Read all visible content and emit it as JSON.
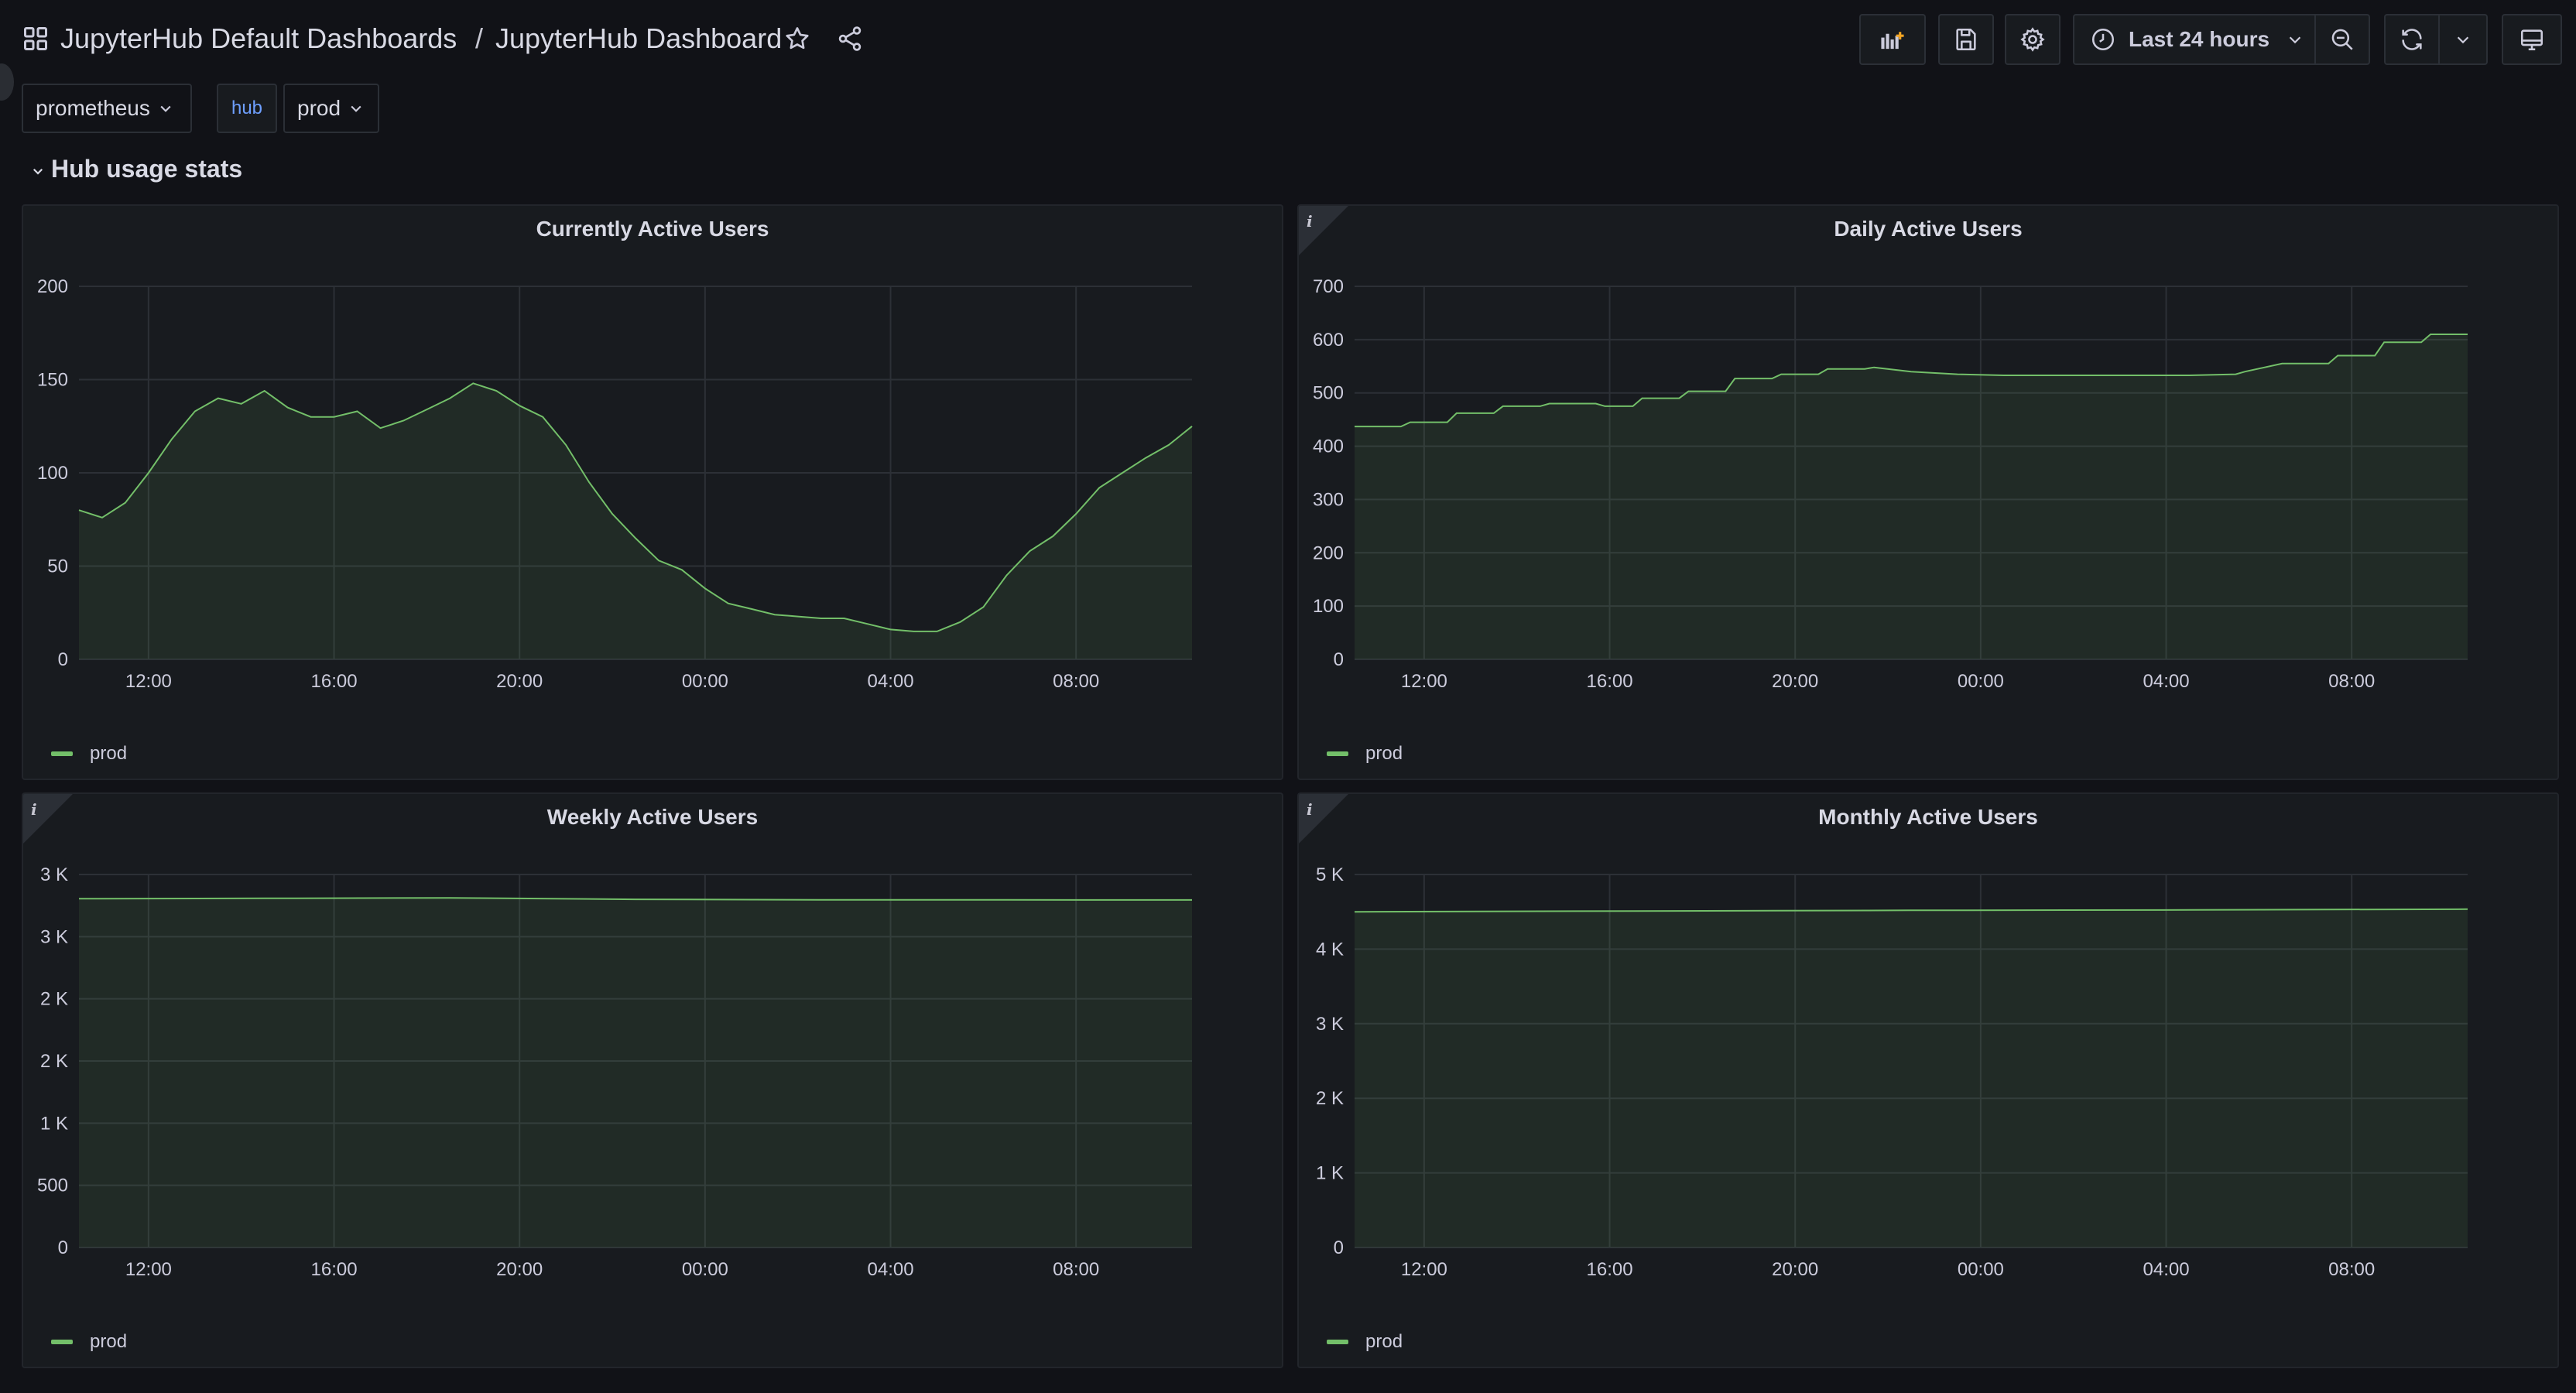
{
  "breadcrumb": {
    "folder": "JupyterHub Default Dashboards",
    "separator": "/",
    "title": "JupyterHub Dashboard"
  },
  "toolbar": {
    "time_range": "Last 24 hours"
  },
  "icons": {
    "apps": "grid-icon",
    "star": "star-icon",
    "share": "share-icon",
    "add_panel": "add-panel-icon",
    "save": "save-icon",
    "settings": "gear-icon",
    "clock": "clock-icon",
    "zoom_out": "zoom-out-icon",
    "refresh": "refresh-icon",
    "tv": "monitor-icon",
    "info": "info-icon"
  },
  "variables": {
    "datasource": "prometheus",
    "hub_label": "hub",
    "hub_value": "prod"
  },
  "row": {
    "title": "Hub usage stats"
  },
  "colors": {
    "series": "#73bf69",
    "background": "#111217",
    "panel": "#181b1f",
    "label_accent": "#6e9fff"
  },
  "panels": [
    {
      "title": "Currently Active Users",
      "legend": "prod",
      "has_info": false
    },
    {
      "title": "Daily Active Users",
      "legend": "prod",
      "has_info": true
    },
    {
      "title": "Weekly Active Users",
      "legend": "prod",
      "has_info": true
    },
    {
      "title": "Monthly Active Users",
      "legend": "prod",
      "has_info": true
    }
  ],
  "chart_data": [
    {
      "type": "area",
      "title": "Currently Active Users",
      "x_ticks": [
        "12:00",
        "16:00",
        "20:00",
        "00:00",
        "04:00",
        "08:00"
      ],
      "y_ticks": [
        "0",
        "50",
        "100",
        "150",
        "200"
      ],
      "ylim": [
        0,
        200
      ],
      "x_hours": [
        0,
        24
      ],
      "grid": true,
      "legend_position": "bottom-left",
      "series": [
        {
          "name": "prod",
          "x": [
            0,
            0.5,
            1.0,
            1.5,
            2.0,
            2.5,
            3.0,
            3.5,
            4.0,
            4.5,
            5.0,
            5.5,
            6.0,
            6.5,
            7.0,
            7.5,
            8.0,
            8.5,
            9.0,
            9.5,
            10.0,
            10.5,
            11.0,
            11.5,
            12.0,
            12.5,
            13.0,
            13.5,
            14.0,
            14.5,
            15.0,
            15.5,
            16.0,
            16.5,
            17.0,
            17.5,
            18.0,
            18.5,
            19.0,
            19.5,
            20.0,
            20.5,
            21.0,
            21.5,
            22.0,
            22.5,
            23.0,
            23.5,
            24.0
          ],
          "values": [
            80,
            76,
            84,
            100,
            118,
            133,
            140,
            137,
            144,
            135,
            130,
            130,
            133,
            124,
            128,
            134,
            140,
            148,
            144,
            136,
            130,
            115,
            95,
            78,
            65,
            53,
            48,
            38,
            30,
            27,
            24,
            23,
            22,
            22,
            19,
            16,
            15,
            15,
            20,
            28,
            45,
            58,
            66,
            78,
            92,
            100,
            108,
            115,
            125
          ]
        }
      ]
    },
    {
      "type": "area",
      "title": "Daily Active Users",
      "x_ticks": [
        "12:00",
        "16:00",
        "20:00",
        "00:00",
        "04:00",
        "08:00"
      ],
      "y_ticks": [
        "0",
        "100",
        "200",
        "300",
        "400",
        "500",
        "600",
        "700"
      ],
      "ylim": [
        0,
        700
      ],
      "x_hours": [
        0,
        24
      ],
      "grid": true,
      "legend_position": "bottom-left",
      "series": [
        {
          "name": "prod",
          "x": [
            0,
            1,
            1.2,
            2,
            2.2,
            3,
            3.2,
            4,
            4.2,
            5.2,
            5.4,
            6,
            6.2,
            7,
            7.2,
            8,
            8.2,
            9,
            9.2,
            10,
            10.2,
            11,
            11.2,
            12,
            13,
            14,
            15,
            16,
            17,
            18,
            19,
            19.2,
            20,
            21,
            21.2,
            22,
            22.2,
            23,
            23.2,
            24
          ],
          "values": [
            437,
            437,
            445,
            445,
            462,
            462,
            475,
            475,
            480,
            480,
            475,
            475,
            490,
            490,
            503,
            503,
            527,
            527,
            535,
            535,
            545,
            545,
            548,
            540,
            535,
            533,
            533,
            533,
            533,
            533,
            535,
            540,
            555,
            555,
            570,
            570,
            595,
            595,
            610,
            610
          ]
        }
      ]
    },
    {
      "type": "area",
      "title": "Weekly Active Users",
      "x_ticks": [
        "12:00",
        "16:00",
        "20:00",
        "00:00",
        "04:00",
        "08:00"
      ],
      "y_ticks": [
        "0",
        "500",
        "1 K",
        "2 K",
        "2 K",
        "3 K",
        "3 K"
      ],
      "ylim": [
        0,
        3000
      ],
      "x_hours": [
        0,
        24
      ],
      "grid": true,
      "legend_position": "bottom-left",
      "series": [
        {
          "name": "prod",
          "x": [
            0,
            4,
            8,
            12,
            16,
            20,
            24
          ],
          "values": [
            2805,
            2808,
            2812,
            2800,
            2796,
            2796,
            2795
          ]
        }
      ]
    },
    {
      "type": "area",
      "title": "Monthly Active Users",
      "x_ticks": [
        "12:00",
        "16:00",
        "20:00",
        "00:00",
        "04:00",
        "08:00"
      ],
      "y_ticks": [
        "0",
        "1 K",
        "2 K",
        "3 K",
        "4 K",
        "5 K"
      ],
      "ylim": [
        0,
        5000
      ],
      "x_hours": [
        0,
        24
      ],
      "grid": true,
      "legend_position": "bottom-left",
      "series": [
        {
          "name": "prod",
          "x": [
            0,
            6,
            12,
            18,
            24
          ],
          "values": [
            4500,
            4510,
            4520,
            4525,
            4535
          ]
        }
      ]
    }
  ]
}
